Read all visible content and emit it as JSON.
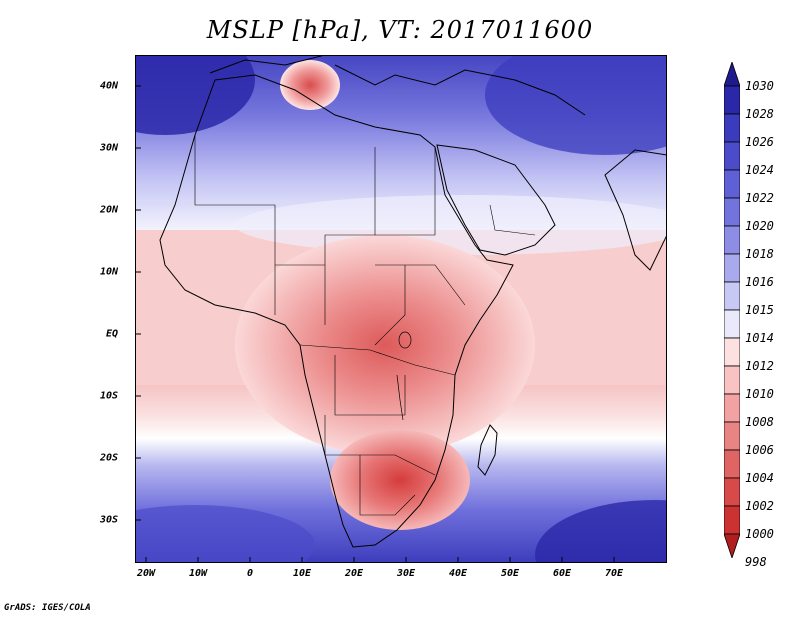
{
  "title": "MSLP [hPa], VT: 2017011600",
  "footer": "GrADS: IGES/COLA",
  "map": {
    "lat_labels": [
      "40N",
      "30N",
      "20N",
      "10N",
      "EQ",
      "10S",
      "20S",
      "30S"
    ],
    "lon_labels": [
      "20W",
      "10W",
      "0",
      "10E",
      "20E",
      "30E",
      "40E",
      "50E",
      "60E",
      "70E"
    ],
    "lon_range": [
      -22,
      80
    ],
    "lat_range": [
      -37,
      45
    ]
  },
  "colorbar": {
    "levels": [
      "1030",
      "1028",
      "1026",
      "1024",
      "1022",
      "1020",
      "1018",
      "1016",
      "1015",
      "1014",
      "1012",
      "1010",
      "1008",
      "1006",
      "1004",
      "1002",
      "1000",
      "998"
    ],
    "colors": [
      "#1f1b8f",
      "#2a28a8",
      "#3b3bbd",
      "#4c4ccb",
      "#5f5fd6",
      "#7373de",
      "#8d8de6",
      "#a9a9ee",
      "#c8c8f5",
      "#e9e9fb",
      "#fde0e0",
      "#f9c3c3",
      "#f2a2a2",
      "#e88484",
      "#df6464",
      "#d84a4a",
      "#cc3232",
      "#b01e1e"
    ]
  }
}
